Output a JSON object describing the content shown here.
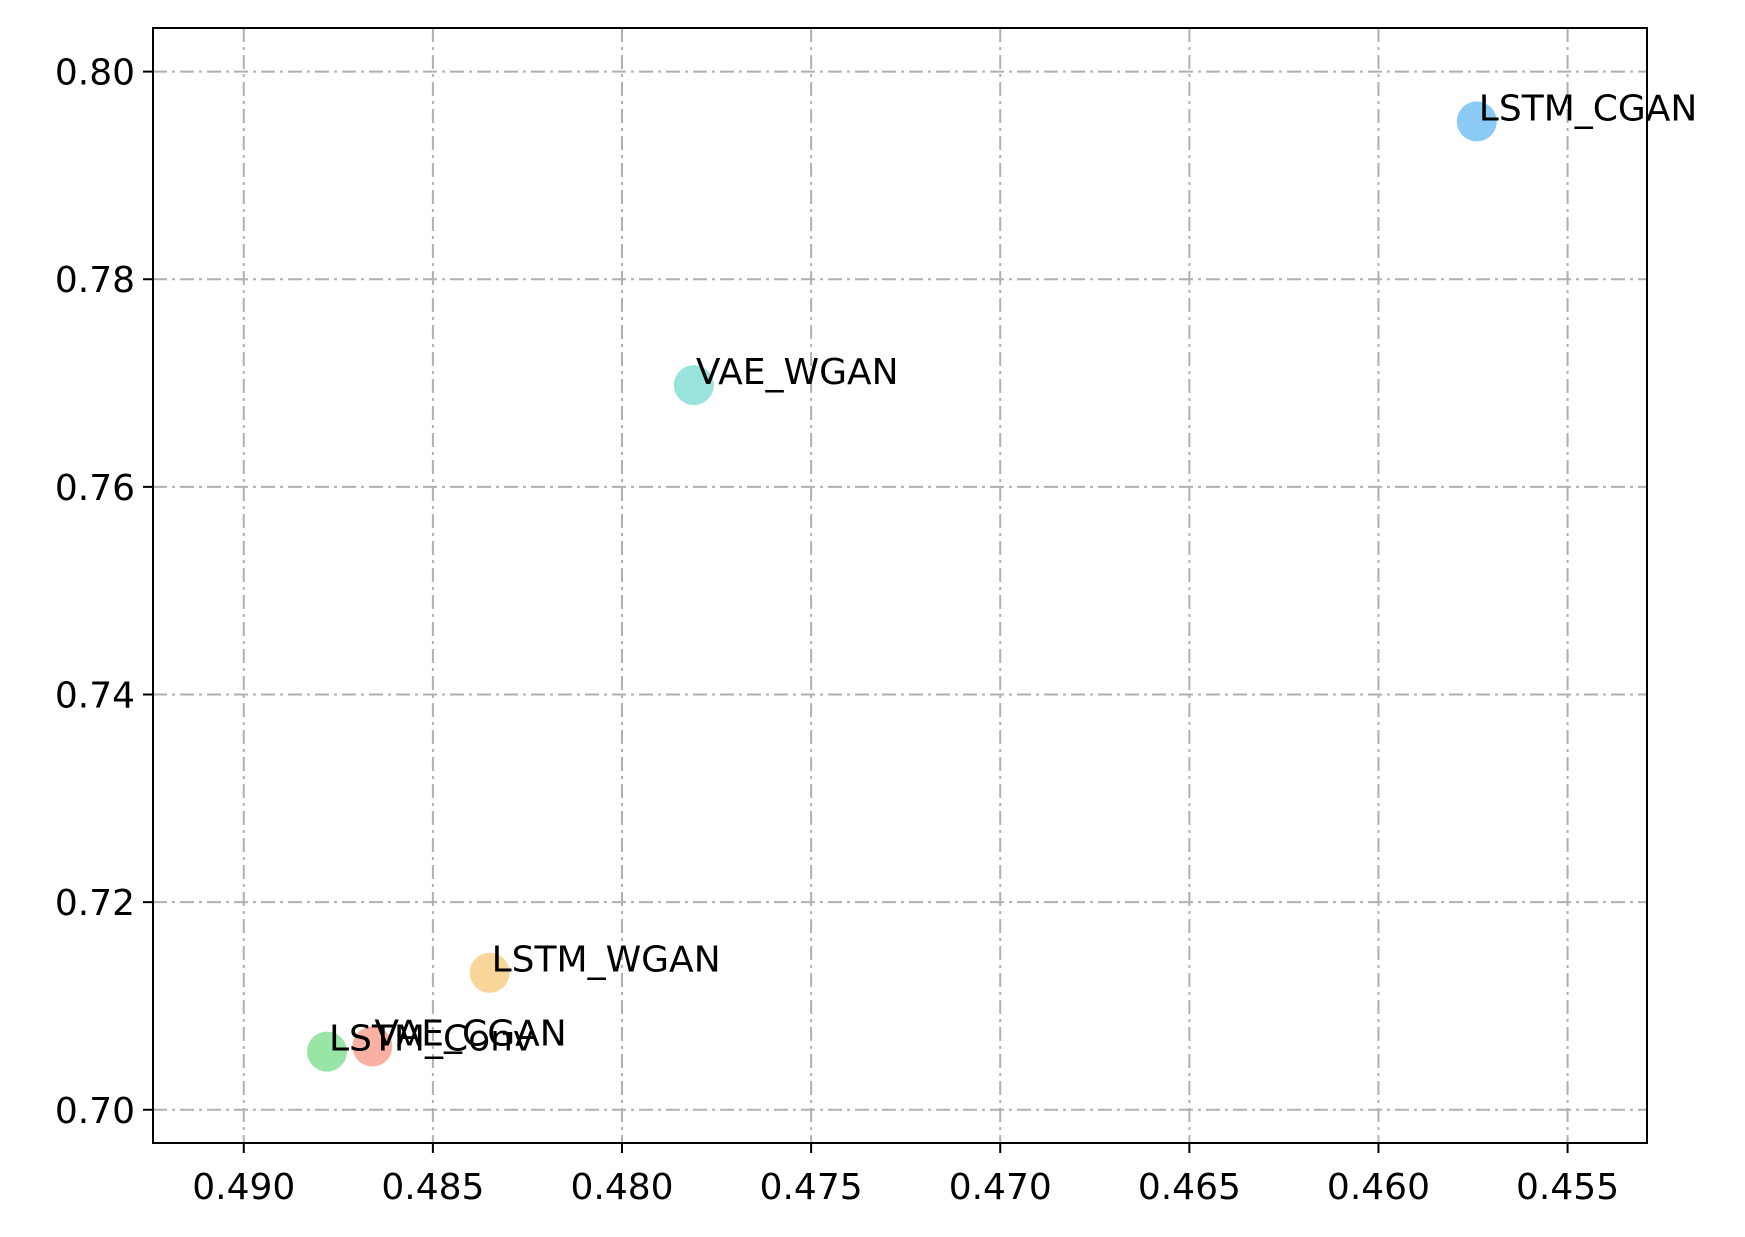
{
  "chart_data": {
    "type": "scatter",
    "title": "",
    "xlabel": "",
    "ylabel": "",
    "xlim": [
      0.4924,
      0.4529
    ],
    "ylim": [
      0.6968,
      0.8042
    ],
    "x_inverted": true,
    "grid": true,
    "x_ticks": [
      "0.490",
      "0.485",
      "0.480",
      "0.475",
      "0.470",
      "0.465",
      "0.460",
      "0.455"
    ],
    "x_tick_values": [
      0.49,
      0.485,
      0.48,
      0.475,
      0.47,
      0.465,
      0.46,
      0.455
    ],
    "y_ticks": [
      "0.70",
      "0.72",
      "0.74",
      "0.76",
      "0.78",
      "0.80"
    ],
    "y_tick_values": [
      0.7,
      0.72,
      0.74,
      0.76,
      0.78,
      0.8
    ],
    "points": [
      {
        "label": "LSTM_CGAN",
        "x": 0.4574,
        "y": 0.7952,
        "color": "#7fc4f5"
      },
      {
        "label": "VAE_WGAN",
        "x": 0.4781,
        "y": 0.7698,
        "color": "#8fe0d8"
      },
      {
        "label": "LSTM_WGAN",
        "x": 0.4835,
        "y": 0.7132,
        "color": "#f7d28e"
      },
      {
        "label": "VAE_CGAN",
        "x": 0.4866,
        "y": 0.7061,
        "color": "#f9a89a"
      },
      {
        "label": "LSTM_Conv",
        "x": 0.4878,
        "y": 0.7056,
        "color": "#8ee29b"
      }
    ]
  }
}
